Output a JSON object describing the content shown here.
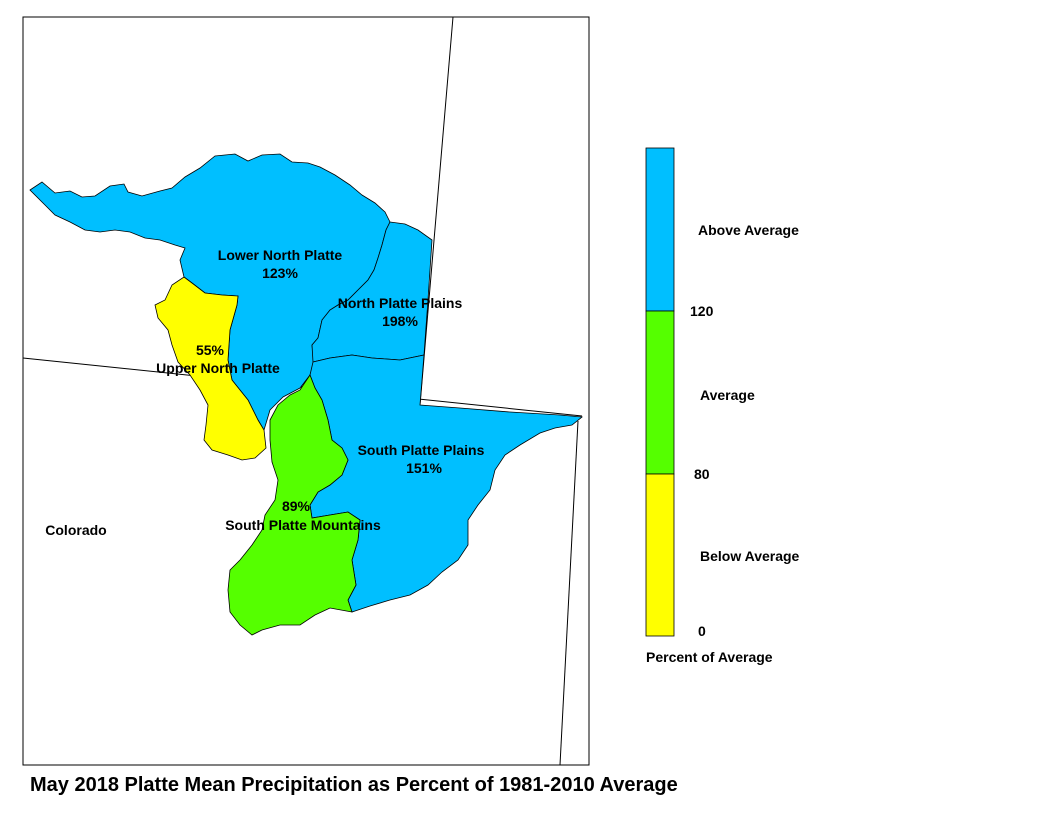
{
  "title": "May 2018 Platte Mean Precipitation as Percent of 1981-2010 Average",
  "map": {
    "state_label": "Colorado",
    "basins": [
      {
        "name": "Lower North Platte",
        "percent": "123%",
        "category": "Above Average"
      },
      {
        "name": "North Platte Plains",
        "percent": "198%",
        "category": "Above Average"
      },
      {
        "name": "Upper North Platte",
        "percent": "55%",
        "category": "Below Average"
      },
      {
        "name": "South Platte Plains",
        "percent": "151%",
        "category": "Above Average"
      },
      {
        "name": "South Platte Mountains",
        "percent": "89%",
        "category": "Average"
      }
    ]
  },
  "legend": {
    "title": "Percent of Average",
    "classes": [
      {
        "label": "Above Average",
        "color": "#00BFFF"
      },
      {
        "label": "Average",
        "color": "#55FF00"
      },
      {
        "label": "Below Average",
        "color": "#FFFF00"
      }
    ],
    "breaks": [
      "120",
      "80",
      "0"
    ]
  },
  "colors": {
    "above": "#00BFFF",
    "average": "#55FF00",
    "below": "#FFFF00",
    "outline": "#000000"
  }
}
